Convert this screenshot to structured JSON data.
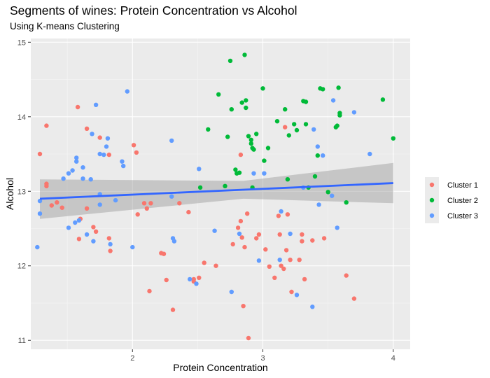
{
  "chart_data": {
    "type": "scatter",
    "title": "Segments of wines: Protein Concentration vs Alcohol",
    "subtitle": "Using K-means Clustering",
    "xlabel": "Protein Concentration",
    "ylabel": "Alcohol",
    "xlim": [
      1.22,
      4.13
    ],
    "ylim": [
      10.88,
      15.05
    ],
    "xticks": [
      2,
      3,
      4
    ],
    "yticks": [
      11,
      12,
      13,
      14,
      15
    ],
    "grid": true,
    "legend_position": "right",
    "series": [
      {
        "name": "Cluster 1",
        "color": "#F8766D",
        "points": [
          [
            1.34,
            13.88
          ],
          [
            1.29,
            13.5
          ],
          [
            1.34,
            13.1
          ],
          [
            1.34,
            13.07
          ],
          [
            1.38,
            12.81
          ],
          [
            1.42,
            12.85
          ],
          [
            1.46,
            12.78
          ],
          [
            1.58,
            14.13
          ],
          [
            1.59,
            12.36
          ],
          [
            1.6,
            12.63
          ],
          [
            1.65,
            13.84
          ],
          [
            1.65,
            12.77
          ],
          [
            1.7,
            12.52
          ],
          [
            1.72,
            12.46
          ],
          [
            1.75,
            13.72
          ],
          [
            1.82,
            13.49
          ],
          [
            1.82,
            12.37
          ],
          [
            1.83,
            12.2
          ],
          [
            2.01,
            13.62
          ],
          [
            2.03,
            13.52
          ],
          [
            2.04,
            12.69
          ],
          [
            2.09,
            12.84
          ],
          [
            2.11,
            12.77
          ],
          [
            2.14,
            12.84
          ],
          [
            2.13,
            11.66
          ],
          [
            2.22,
            12.17
          ],
          [
            2.24,
            12.16
          ],
          [
            2.26,
            11.81
          ],
          [
            2.31,
            11.41
          ],
          [
            2.43,
            12.72
          ],
          [
            2.47,
            11.82
          ],
          [
            2.47,
            11.79
          ],
          [
            2.51,
            11.84
          ],
          [
            2.55,
            12.04
          ],
          [
            2.64,
            12.0
          ],
          [
            2.77,
            12.29
          ],
          [
            2.81,
            12.51
          ],
          [
            2.83,
            12.6
          ],
          [
            2.84,
            12.38
          ],
          [
            2.86,
            12.25
          ],
          [
            2.85,
            11.46
          ],
          [
            2.88,
            12.7
          ],
          [
            2.95,
            12.37
          ],
          [
            2.97,
            12.42
          ],
          [
            2.89,
            11.03
          ],
          [
            3.02,
            12.22
          ],
          [
            3.05,
            11.99
          ],
          [
            3.09,
            11.84
          ],
          [
            3.12,
            12.67
          ],
          [
            3.13,
            12.42
          ],
          [
            3.14,
            12.0
          ],
          [
            3.16,
            11.96
          ],
          [
            3.19,
            12.69
          ],
          [
            3.18,
            12.21
          ],
          [
            3.21,
            12.08
          ],
          [
            3.22,
            11.65
          ],
          [
            3.28,
            12.08
          ],
          [
            3.3,
            12.42
          ],
          [
            3.3,
            12.33
          ],
          [
            3.32,
            11.82
          ],
          [
            3.38,
            12.34
          ],
          [
            3.47,
            12.37
          ],
          [
            3.64,
            11.87
          ],
          [
            3.7,
            11.56
          ],
          [
            2.83,
            13.49
          ],
          [
            3.17,
            13.86
          ],
          [
            2.36,
            12.84
          ]
        ]
      },
      {
        "name": "Cluster 2",
        "color": "#00BA38",
        "points": [
          [
            2.52,
            13.05
          ],
          [
            2.58,
            13.83
          ],
          [
            2.66,
            14.3
          ],
          [
            2.71,
            13.07
          ],
          [
            2.73,
            13.73
          ],
          [
            2.75,
            14.75
          ],
          [
            2.76,
            14.1
          ],
          [
            2.79,
            13.29
          ],
          [
            2.82,
            13.25
          ],
          [
            2.84,
            14.19
          ],
          [
            2.86,
            14.83
          ],
          [
            2.87,
            14.22
          ],
          [
            2.87,
            14.12
          ],
          [
            2.89,
            13.74
          ],
          [
            2.91,
            13.69
          ],
          [
            2.91,
            13.64
          ],
          [
            2.92,
            13.58
          ],
          [
            2.93,
            13.56
          ],
          [
            2.95,
            13.77
          ],
          [
            2.92,
            13.05
          ],
          [
            3.0,
            14.38
          ],
          [
            3.01,
            13.41
          ],
          [
            3.04,
            13.58
          ],
          [
            3.11,
            13.94
          ],
          [
            3.17,
            14.1
          ],
          [
            3.19,
            13.16
          ],
          [
            3.2,
            13.75
          ],
          [
            3.24,
            13.9
          ],
          [
            3.26,
            13.82
          ],
          [
            3.31,
            14.21
          ],
          [
            3.33,
            14.2
          ],
          [
            3.33,
            13.9
          ],
          [
            3.35,
            13.05
          ],
          [
            3.4,
            13.2
          ],
          [
            3.44,
            14.38
          ],
          [
            3.46,
            14.37
          ],
          [
            3.5,
            12.99
          ],
          [
            3.56,
            13.86
          ],
          [
            3.57,
            13.88
          ],
          [
            3.58,
            14.39
          ],
          [
            3.59,
            14.05
          ],
          [
            3.59,
            14.02
          ],
          [
            3.64,
            12.85
          ],
          [
            3.92,
            14.23
          ],
          [
            4.0,
            13.71
          ],
          [
            2.8,
            13.24
          ],
          [
            3.42,
            13.48
          ]
        ]
      },
      {
        "name": "Cluster 3",
        "color": "#619CFF",
        "points": [
          [
            1.27,
            12.25
          ],
          [
            1.29,
            12.87
          ],
          [
            1.29,
            12.7
          ],
          [
            1.47,
            13.17
          ],
          [
            1.51,
            13.24
          ],
          [
            1.51,
            12.51
          ],
          [
            1.54,
            13.28
          ],
          [
            1.57,
            13.45
          ],
          [
            1.57,
            13.4
          ],
          [
            1.56,
            12.58
          ],
          [
            1.59,
            12.61
          ],
          [
            1.62,
            13.32
          ],
          [
            1.62,
            13.17
          ],
          [
            1.65,
            12.42
          ],
          [
            1.69,
            13.77
          ],
          [
            1.68,
            13.16
          ],
          [
            1.7,
            12.33
          ],
          [
            1.72,
            14.16
          ],
          [
            1.75,
            13.5
          ],
          [
            1.75,
            12.96
          ],
          [
            1.75,
            12.82
          ],
          [
            1.78,
            13.49
          ],
          [
            1.8,
            13.6
          ],
          [
            1.81,
            13.71
          ],
          [
            1.83,
            12.29
          ],
          [
            1.87,
            12.88
          ],
          [
            1.92,
            13.4
          ],
          [
            1.93,
            13.34
          ],
          [
            1.96,
            14.34
          ],
          [
            2.0,
            12.25
          ],
          [
            2.3,
            12.93
          ],
          [
            2.31,
            12.37
          ],
          [
            2.32,
            12.33
          ],
          [
            2.3,
            13.68
          ],
          [
            2.44,
            11.82
          ],
          [
            2.49,
            11.76
          ],
          [
            2.51,
            13.3
          ],
          [
            2.63,
            12.47
          ],
          [
            2.76,
            11.65
          ],
          [
            2.82,
            12.43
          ],
          [
            2.93,
            13.24
          ],
          [
            2.97,
            12.07
          ],
          [
            3.01,
            13.24
          ],
          [
            3.13,
            12.08
          ],
          [
            3.14,
            12.73
          ],
          [
            3.21,
            12.43
          ],
          [
            3.26,
            11.61
          ],
          [
            3.31,
            13.05
          ],
          [
            3.38,
            11.45
          ],
          [
            3.39,
            13.83
          ],
          [
            3.42,
            13.6
          ],
          [
            3.46,
            13.48
          ],
          [
            3.53,
            12.94
          ],
          [
            3.54,
            14.22
          ],
          [
            3.57,
            12.51
          ],
          [
            3.7,
            14.06
          ],
          [
            3.82,
            13.5
          ],
          [
            3.43,
            12.82
          ]
        ]
      }
    ],
    "trend_line": {
      "method": "linear",
      "color": "#3366FF",
      "x": [
        1.29,
        4.0
      ],
      "y": [
        12.9,
        13.11
      ],
      "ci_lower": [
        12.63,
        12.84
      ],
      "ci_upper": [
        13.16,
        13.38
      ],
      "ci_mid_x": 2.85,
      "ci_mid_lower": 12.9,
      "ci_mid_upper": 13.14
    }
  }
}
